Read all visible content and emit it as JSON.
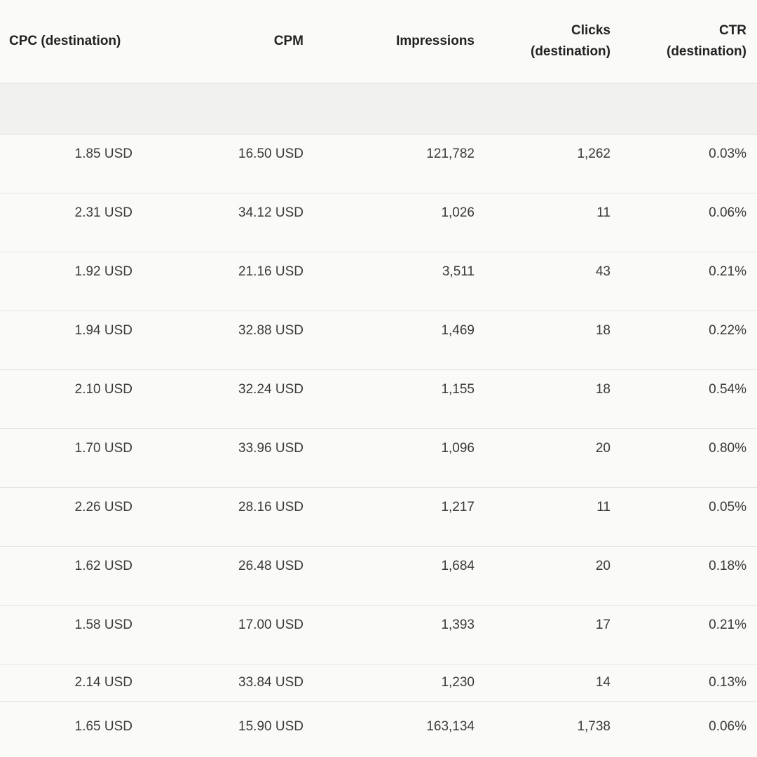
{
  "table": {
    "columns": [
      {
        "label_line1": "CPC (destination)",
        "label_line2": ""
      },
      {
        "label_line1": "CPM",
        "label_line2": ""
      },
      {
        "label_line1": "Impressions",
        "label_line2": ""
      },
      {
        "label_line1": "Clicks",
        "label_line2": "(destination)"
      },
      {
        "label_line1": "CTR",
        "label_line2": "(destination)"
      }
    ],
    "rows": [
      {
        "cpc": "1.85 USD",
        "cpm": "16.50 USD",
        "impressions": "121,782",
        "clicks": "1,262",
        "ctr": "0.03%"
      },
      {
        "cpc": "2.31 USD",
        "cpm": "34.12 USD",
        "impressions": "1,026",
        "clicks": "11",
        "ctr": "0.06%"
      },
      {
        "cpc": "1.92 USD",
        "cpm": "21.16 USD",
        "impressions": "3,511",
        "clicks": "43",
        "ctr": "0.21%"
      },
      {
        "cpc": "1.94 USD",
        "cpm": "32.88 USD",
        "impressions": "1,469",
        "clicks": "18",
        "ctr": "0.22%"
      },
      {
        "cpc": "2.10 USD",
        "cpm": "32.24 USD",
        "impressions": "1,155",
        "clicks": "18",
        "ctr": "0.54%"
      },
      {
        "cpc": "1.70 USD",
        "cpm": "33.96 USD",
        "impressions": "1,096",
        "clicks": "20",
        "ctr": "0.80%"
      },
      {
        "cpc": "2.26 USD",
        "cpm": "28.16 USD",
        "impressions": "1,217",
        "clicks": "11",
        "ctr": "0.05%"
      },
      {
        "cpc": "1.62 USD",
        "cpm": "26.48 USD",
        "impressions": "1,684",
        "clicks": "20",
        "ctr": "0.18%"
      },
      {
        "cpc": "1.58 USD",
        "cpm": "17.00 USD",
        "impressions": "1,393",
        "clicks": "17",
        "ctr": "0.21%"
      },
      {
        "cpc": "2.14 USD",
        "cpm": "33.84 USD",
        "impressions": "1,230",
        "clicks": "14",
        "ctr": "0.13%"
      },
      {
        "cpc": "1.65 USD",
        "cpm": "15.90 USD",
        "impressions": "163,134",
        "clicks": "1,738",
        "ctr": "0.06%"
      }
    ]
  }
}
